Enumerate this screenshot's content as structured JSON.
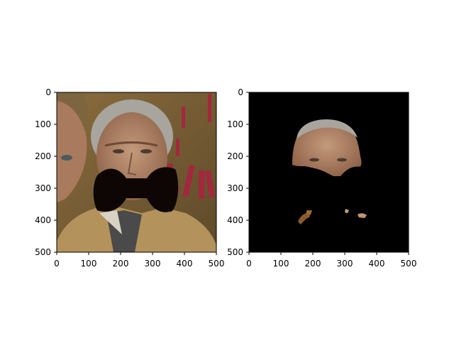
{
  "panels": [
    {
      "id": "left",
      "description_name": "original-photo-with-mask",
      "x_ticks": [
        "0",
        "100",
        "200",
        "300",
        "400",
        "500"
      ],
      "y_ticks": [
        "0",
        "100",
        "200",
        "300",
        "400",
        "500"
      ]
    },
    {
      "id": "right",
      "description_name": "segmented-face",
      "x_ticks": [
        "0",
        "100",
        "200",
        "300",
        "400",
        "500"
      ],
      "y_ticks": [
        "0",
        "100",
        "200",
        "300",
        "400",
        "500"
      ]
    }
  ],
  "colors": {
    "photo_bg": "#7a5f35",
    "red_letters": "#a8243f",
    "jacket": "#b3925c",
    "skin": "#b2866a",
    "hair": "#a7a59e",
    "mask": "#0d0605",
    "segment_bg": "#000000"
  }
}
